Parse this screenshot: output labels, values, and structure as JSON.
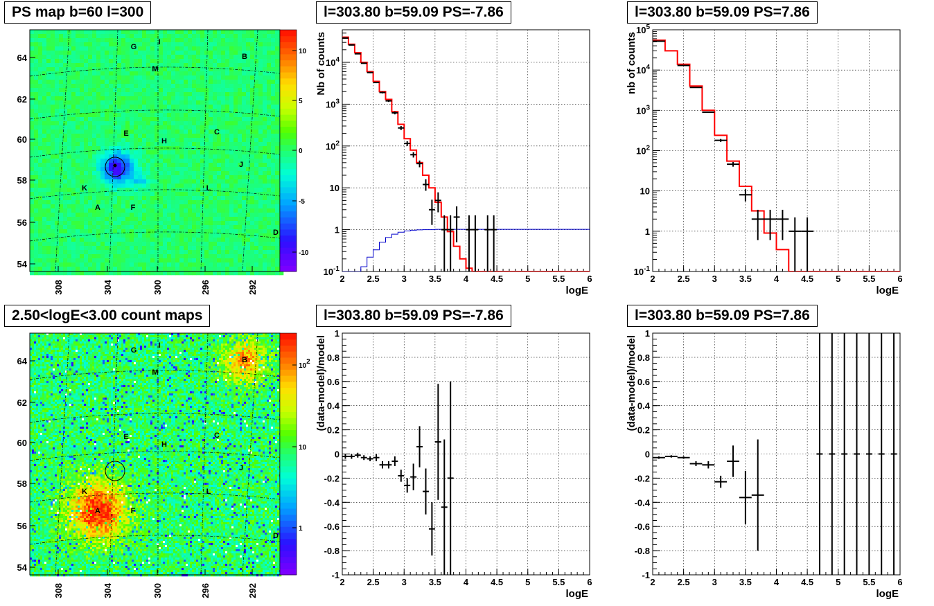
{
  "panels": {
    "map_top_title": "PS map b=60 l=300",
    "map_bottom_title": "2.50<logE<3.00 count maps",
    "spec_neg_title": "l=303.80 b=59.09 PS=-7.86",
    "spec_pos_title": "l=303.80 b=59.09 PS=7.86",
    "resid_neg_title": "l=303.80 b=59.09 PS=-7.86",
    "resid_pos_title": "l=303.80 b=59.09 PS=7.86"
  },
  "colors": {
    "model_line": "#ff0000",
    "flat_line": "#0000cc",
    "data_marker": "#000000"
  },
  "chart_data": [
    {
      "id": "ps_map",
      "type": "heatmap",
      "title": "PS map b=60 l=300",
      "x_ticks": [
        "308",
        "304",
        "300",
        "296",
        "292"
      ],
      "y_ticks": [
        "54",
        "56",
        "58",
        "60",
        "62",
        "64"
      ],
      "colorbar_ticks": [
        "10",
        "5",
        "0",
        "-5",
        "-10"
      ],
      "source_labels": [
        "G",
        "I",
        "B",
        "M",
        "E",
        "C",
        "H",
        "J",
        "K",
        "L",
        "A",
        "F",
        "D"
      ],
      "marker": {
        "l": 303.8,
        "b": 59.09
      }
    },
    {
      "id": "count_map",
      "type": "heatmap",
      "title": "2.50<logE<3.00 count maps",
      "x_ticks": [
        "308",
        "304",
        "300",
        "296",
        "292"
      ],
      "y_ticks": [
        "54",
        "56",
        "58",
        "60",
        "62",
        "64"
      ],
      "colorbar_ticks": [
        "10^2",
        "10",
        "1"
      ],
      "source_labels": [
        "G",
        "I",
        "B",
        "M",
        "E",
        "C",
        "H",
        "J",
        "K",
        "L",
        "A",
        "F",
        "D"
      ],
      "marker": {
        "l": 303.8,
        "b": 59.09
      }
    },
    {
      "id": "spec_neg",
      "type": "line",
      "title": "l=303.80 b=59.09 PS=-7.86",
      "xlabel": "logE",
      "ylabel": "Nb of counts",
      "xlim": [
        2,
        6
      ],
      "ylim": [
        0.1,
        60000
      ],
      "yscale": "log",
      "x_ticks": [
        "2",
        "2.5",
        "3",
        "3.5",
        "4",
        "4.5",
        "5",
        "5.5",
        "6"
      ],
      "y_ticks": [
        "10^-1",
        "1",
        "10",
        "10^2",
        "10^3",
        "10^4"
      ],
      "model_step": {
        "edges": [
          2.0,
          2.1,
          2.2,
          2.3,
          2.4,
          2.5,
          2.6,
          2.7,
          2.8,
          2.9,
          3.0,
          3.1,
          3.2,
          3.3,
          3.4,
          3.5,
          3.6,
          3.7,
          3.8,
          3.9,
          4.0,
          4.1,
          4.2,
          4.3,
          4.4,
          4.5,
          6.0
        ],
        "values": [
          40000,
          27000,
          17000,
          10000,
          6000,
          3500,
          2000,
          1300,
          660,
          330,
          150,
          80,
          40,
          20,
          10,
          4.5,
          2.0,
          0.9,
          0.4,
          0.2,
          0.12,
          0.1,
          0.1,
          0.1,
          0.1,
          0.1
        ]
      },
      "flat_step": {
        "edges": [
          2.0,
          2.3,
          2.4,
          2.5,
          2.6,
          2.7,
          2.8,
          2.9,
          3.0,
          3.1,
          3.2,
          3.3,
          3.4,
          3.5,
          3.6,
          3.7,
          3.8,
          3.9,
          4.0,
          6.0
        ],
        "values": [
          0.1,
          0.13,
          0.22,
          0.33,
          0.5,
          0.65,
          0.78,
          0.87,
          0.93,
          0.97,
          0.99,
          1.0,
          1.0,
          1.02,
          1.02,
          1.02,
          1.02,
          1.02,
          1.02
        ]
      },
      "points": [
        {
          "x": 2.05,
          "y": 38000,
          "lo": 37000,
          "hi": 39000
        },
        {
          "x": 2.15,
          "y": 26000,
          "lo": 25300,
          "hi": 26700
        },
        {
          "x": 2.25,
          "y": 16000,
          "lo": 15500,
          "hi": 16500
        },
        {
          "x": 2.35,
          "y": 9500,
          "lo": 9200,
          "hi": 9800
        },
        {
          "x": 2.45,
          "y": 5700,
          "lo": 5500,
          "hi": 5900
        },
        {
          "x": 2.55,
          "y": 3300,
          "lo": 3180,
          "hi": 3420
        },
        {
          "x": 2.65,
          "y": 1900,
          "lo": 1810,
          "hi": 1990
        },
        {
          "x": 2.75,
          "y": 1200,
          "lo": 1130,
          "hi": 1270
        },
        {
          "x": 2.85,
          "y": 620,
          "lo": 570,
          "hi": 670
        },
        {
          "x": 2.95,
          "y": 270,
          "lo": 240,
          "hi": 300
        },
        {
          "x": 3.05,
          "y": 115,
          "lo": 100,
          "hi": 130
        },
        {
          "x": 3.15,
          "y": 62,
          "lo": 53,
          "hi": 71
        },
        {
          "x": 3.25,
          "y": 38,
          "lo": 31,
          "hi": 45
        },
        {
          "x": 3.35,
          "y": 12,
          "lo": 8.5,
          "hi": 16
        },
        {
          "x": 3.45,
          "y": 3,
          "lo": 1.3,
          "hi": 5.2
        },
        {
          "x": 3.55,
          "y": 5,
          "lo": 2.6,
          "hi": 7.8
        },
        {
          "x": 3.65,
          "y": 1,
          "lo": 0.1,
          "hi": 2.2
        },
        {
          "x": 3.75,
          "y": 1,
          "lo": 0.1,
          "hi": 2.2
        },
        {
          "x": 3.85,
          "y": 2,
          "lo": 0.5,
          "hi": 3.6
        },
        {
          "x": 4.05,
          "y": 1,
          "lo": 0.1,
          "hi": 2.2
        },
        {
          "x": 4.15,
          "y": 1,
          "lo": 0.1,
          "hi": 2.2
        },
        {
          "x": 4.35,
          "y": 1,
          "lo": 0.1,
          "hi": 2.2
        },
        {
          "x": 4.45,
          "y": 1,
          "lo": 0.1,
          "hi": 2.2
        }
      ]
    },
    {
      "id": "spec_pos",
      "type": "line",
      "title": "l=303.80 b=59.09 PS=7.86",
      "xlabel": "logE",
      "ylabel": "nb of counts",
      "xlim": [
        2,
        6
      ],
      "ylim": [
        0.1,
        100000
      ],
      "yscale": "log",
      "x_ticks": [
        "2",
        "2.5",
        "3",
        "3.5",
        "4",
        "4.5",
        "5",
        "5.5",
        "6"
      ],
      "y_ticks": [
        "10^-1",
        "1",
        "10",
        "10^2",
        "10^3",
        "10^4",
        "10^5"
      ],
      "model_step": {
        "edges": [
          2.0,
          2.2,
          2.4,
          2.6,
          2.8,
          3.0,
          3.2,
          3.4,
          3.6,
          3.8,
          4.0,
          4.2,
          6.0
        ],
        "values": [
          55000,
          30000,
          14000,
          4000,
          1000,
          240,
          55,
          13,
          3.2,
          0.9,
          0.35,
          0.1
        ]
      },
      "points": [
        {
          "x": 2.1,
          "y": 52000,
          "lo": 51000,
          "hi": 53000,
          "dx": 0.1
        },
        {
          "x": 2.5,
          "y": 13000,
          "lo": 12800,
          "hi": 13200,
          "dx": 0.1
        },
        {
          "x": 2.7,
          "y": 3700,
          "lo": 3600,
          "hi": 3800,
          "dx": 0.1
        },
        {
          "x": 2.9,
          "y": 900,
          "lo": 880,
          "hi": 920,
          "dx": 0.1
        },
        {
          "x": 3.1,
          "y": 180,
          "lo": 165,
          "hi": 195,
          "dx": 0.1
        },
        {
          "x": 3.3,
          "y": 46,
          "lo": 40,
          "hi": 52,
          "dx": 0.1
        },
        {
          "x": 3.5,
          "y": 8,
          "lo": 5.5,
          "hi": 11,
          "dx": 0.1
        },
        {
          "x": 3.7,
          "y": 2,
          "lo": 0.6,
          "hi": 3.4,
          "dx": 0.1
        },
        {
          "x": 3.9,
          "y": 2,
          "lo": 0.6,
          "hi": 3.4,
          "dx": 0.1
        },
        {
          "x": 4.1,
          "y": 2,
          "lo": 0.6,
          "hi": 3.4,
          "dx": 0.1
        },
        {
          "x": 4.3,
          "y": 1,
          "lo": 0.1,
          "hi": 2.2,
          "dx": 0.1
        },
        {
          "x": 4.5,
          "y": 1,
          "lo": 0.1,
          "hi": 2.2,
          "dx": 0.1
        }
      ]
    },
    {
      "id": "resid_neg",
      "type": "scatter",
      "title": "l=303.80 b=59.09 PS=-7.86",
      "xlabel": "logE",
      "ylabel": "(data-model)/model",
      "xlim": [
        2,
        6
      ],
      "ylim": [
        -1,
        1
      ],
      "x_ticks": [
        "2",
        "2.5",
        "3",
        "3.5",
        "4",
        "4.5",
        "5",
        "5.5",
        "6"
      ],
      "y_ticks": [
        "-1",
        "-0.8",
        "-0.6",
        "-0.4",
        "-0.2",
        "0",
        "0.2",
        "0.4",
        "0.6",
        "0.8",
        "1"
      ],
      "points": [
        {
          "x": 2.05,
          "y": -0.02,
          "err": 0.02
        },
        {
          "x": 2.15,
          "y": -0.02,
          "err": 0.02
        },
        {
          "x": 2.25,
          "y": -0.01,
          "err": 0.02
        },
        {
          "x": 2.35,
          "y": -0.03,
          "err": 0.02
        },
        {
          "x": 2.45,
          "y": -0.04,
          "err": 0.02
        },
        {
          "x": 2.55,
          "y": -0.03,
          "err": 0.03
        },
        {
          "x": 2.65,
          "y": -0.09,
          "err": 0.03
        },
        {
          "x": 2.75,
          "y": -0.09,
          "err": 0.03
        },
        {
          "x": 2.85,
          "y": -0.06,
          "err": 0.04
        },
        {
          "x": 2.95,
          "y": -0.18,
          "err": 0.05
        },
        {
          "x": 3.05,
          "y": -0.26,
          "err": 0.06
        },
        {
          "x": 3.15,
          "y": -0.19,
          "err": 0.11
        },
        {
          "x": 3.25,
          "y": 0.06,
          "err": 0.17
        },
        {
          "x": 3.35,
          "y": -0.31,
          "err": 0.19
        },
        {
          "x": 3.45,
          "y": -0.62,
          "err": 0.22
        },
        {
          "x": 3.55,
          "y": 0.1,
          "err": 0.48
        },
        {
          "x": 3.65,
          "y": -0.44,
          "err": 0.56
        },
        {
          "x": 3.75,
          "y": -0.2,
          "err": 0.8
        }
      ]
    },
    {
      "id": "resid_pos",
      "type": "scatter",
      "title": "l=303.80 b=59.09 PS=7.86",
      "xlabel": "logE",
      "ylabel": "(data-model)/model",
      "xlim": [
        2,
        6
      ],
      "ylim": [
        -1,
        1
      ],
      "x_ticks": [
        "2",
        "2.5",
        "3",
        "3.5",
        "4",
        "4.5",
        "5",
        "5.5",
        "6"
      ],
      "y_ticks": [
        "-1",
        "-0.8",
        "-0.6",
        "-0.4",
        "-0.2",
        "0",
        "0.2",
        "0.4",
        "0.6",
        "0.8",
        "1"
      ],
      "points": [
        {
          "x": 2.1,
          "y": -0.03,
          "err": 0.01,
          "dx": 0.1
        },
        {
          "x": 2.3,
          "y": -0.02,
          "err": 0.01,
          "dx": 0.1
        },
        {
          "x": 2.5,
          "y": -0.03,
          "err": 0.01,
          "dx": 0.1
        },
        {
          "x": 2.7,
          "y": -0.08,
          "err": 0.02,
          "dx": 0.1
        },
        {
          "x": 2.9,
          "y": -0.09,
          "err": 0.03,
          "dx": 0.1
        },
        {
          "x": 3.1,
          "y": -0.23,
          "err": 0.05,
          "dx": 0.1
        },
        {
          "x": 3.3,
          "y": -0.06,
          "err": 0.13,
          "dx": 0.1
        },
        {
          "x": 3.5,
          "y": -0.36,
          "err": 0.22,
          "dx": 0.1
        },
        {
          "x": 3.7,
          "y": -0.34,
          "err": 0.46,
          "dx": 0.1
        },
        {
          "x": 4.7,
          "y": 0,
          "err": 1.5
        },
        {
          "x": 4.9,
          "y": 0,
          "err": 1.5
        },
        {
          "x": 5.1,
          "y": 0,
          "err": 1.5
        },
        {
          "x": 5.3,
          "y": 0,
          "err": 1.5
        },
        {
          "x": 5.5,
          "y": 0,
          "err": 1.5
        },
        {
          "x": 5.7,
          "y": 0,
          "err": 1.5
        },
        {
          "x": 5.9,
          "y": 0,
          "err": 1.5
        }
      ]
    }
  ]
}
